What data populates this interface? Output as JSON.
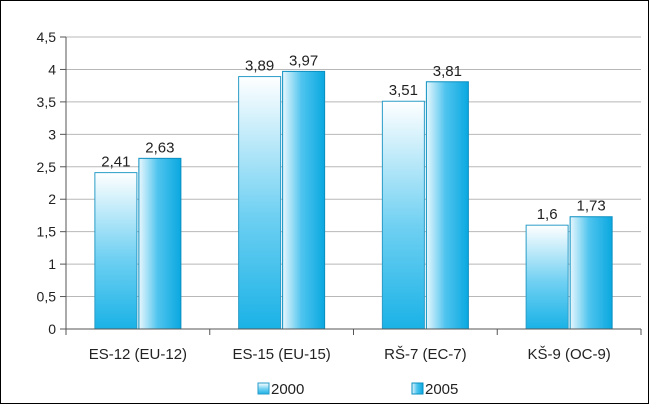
{
  "chart_data": {
    "type": "bar",
    "categories": [
      "ES-12 (EU-12)",
      "ES-15 (EU-15)",
      "RŠ-7 (EC-7)",
      "KŠ-9 (OC-9)"
    ],
    "series": [
      {
        "name": "2000",
        "values": [
          2.41,
          3.89,
          3.51,
          1.6
        ],
        "labels": [
          "2,41",
          "3,89",
          "3,51",
          "1,6"
        ]
      },
      {
        "name": "2005",
        "values": [
          2.63,
          3.97,
          3.81,
          1.73
        ],
        "labels": [
          "2,63",
          "3,97",
          "3,81",
          "1,73"
        ]
      }
    ],
    "ylim": [
      0,
      4.5
    ],
    "yticks": [
      0,
      0.5,
      1,
      1.5,
      2,
      2.5,
      3,
      3.5,
      4,
      4.5
    ],
    "ytick_labels": [
      "0",
      "0,5",
      "1",
      "1,5",
      "2",
      "2,5",
      "3",
      "3,5",
      "4",
      "4,5"
    ],
    "grid": true,
    "legend_position": "bottom",
    "colors": {
      "series_2000_edge": "#ffffff",
      "series_2000_core": "#1ab2e6",
      "series_2005_edge": "#e8f7fd",
      "series_2005_core": "#0aa8e0",
      "gridline": "#b8b8b8",
      "axis": "#555555"
    }
  }
}
